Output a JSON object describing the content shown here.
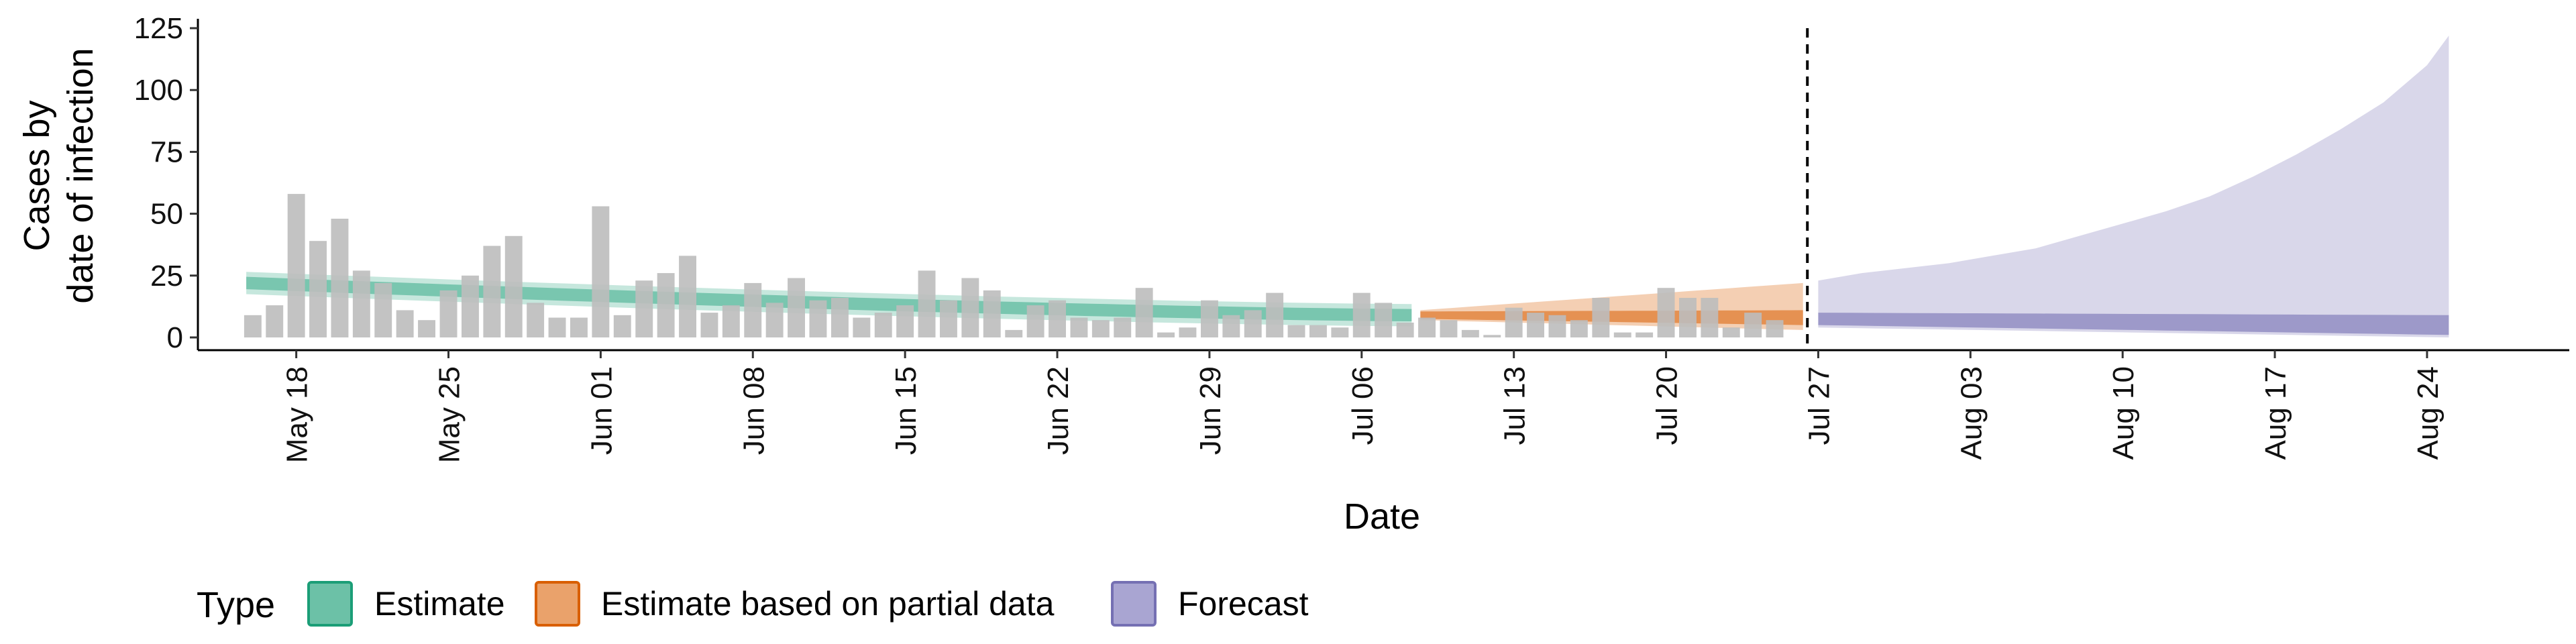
{
  "chart_data": {
    "type": "bar",
    "title": "",
    "xlabel": "Date",
    "ylabel_lines": [
      "Cases by",
      "date of infection"
    ],
    "ylim": [
      0,
      125
    ],
    "yticks": [
      0,
      25,
      50,
      75,
      100,
      125
    ],
    "x_start": "2020-05-14",
    "x_end": "2020-08-29",
    "x_ticks": [
      "2020-05-18",
      "2020-05-25",
      "2020-06-01",
      "2020-06-08",
      "2020-06-15",
      "2020-06-22",
      "2020-06-29",
      "2020-07-06",
      "2020-07-13",
      "2020-07-20",
      "2020-07-27",
      "2020-08-03",
      "2020-08-10",
      "2020-08-17",
      "2020-08-24"
    ],
    "x_tick_labels": [
      "May 18",
      "May 25",
      "Jun 01",
      "Jun 08",
      "Jun 15",
      "Jun 22",
      "Jun 29",
      "Jul 06",
      "Jul 13",
      "Jul 20",
      "Jul 27",
      "Aug 03",
      "Aug 10",
      "Aug 17",
      "Aug 24"
    ],
    "bars_start": "2020-05-16",
    "bars": [
      9,
      13,
      58,
      39,
      48,
      27,
      22,
      11,
      7,
      19,
      25,
      37,
      41,
      14,
      8,
      8,
      53,
      9,
      23,
      26,
      33,
      10,
      13,
      22,
      14,
      24,
      15,
      16,
      8,
      10,
      13,
      27,
      15,
      24,
      19,
      3,
      13,
      15,
      8,
      7,
      8,
      20,
      2,
      4,
      15,
      9,
      11,
      18,
      5,
      5,
      4,
      18,
      14,
      6,
      8,
      7,
      3,
      1,
      12,
      10,
      9,
      7,
      16,
      2,
      2,
      20,
      16,
      16,
      4,
      10,
      7
    ],
    "vline_date": "2020-07-26",
    "estimate": {
      "start": "2020-05-16",
      "end": "2020-07-08",
      "median_start": 22,
      "median_end": 9,
      "inner_halfwidth": 2.5,
      "outer_halfwidth": 4.5
    },
    "partial": {
      "start": "2020-07-09",
      "end": "2020-07-26",
      "median_start": 9,
      "median_end": 7,
      "inner_upper": [
        10.5,
        11
      ],
      "inner_lower": [
        7.5,
        5
      ],
      "outer_upper": [
        11,
        22
      ],
      "outer_lower": [
        7,
        3
      ]
    },
    "forecast": {
      "start": "2020-07-27",
      "end": "2020-08-25",
      "inner_upper": [
        10,
        9
      ],
      "inner_lower": [
        5,
        1
      ],
      "outer_upper_points": [
        [
          0,
          23
        ],
        [
          2,
          26
        ],
        [
          4,
          28
        ],
        [
          6,
          30
        ],
        [
          8,
          33
        ],
        [
          10,
          36
        ],
        [
          12,
          41
        ],
        [
          14,
          46
        ],
        [
          16,
          51
        ],
        [
          18,
          57
        ],
        [
          20,
          65
        ],
        [
          22,
          74
        ],
        [
          24,
          84
        ],
        [
          26,
          95
        ],
        [
          28,
          110
        ],
        [
          29,
          122
        ]
      ],
      "outer_lower": [
        4,
        0
      ]
    },
    "legend": {
      "title": "Type",
      "items": [
        {
          "label": "Estimate",
          "fill": "#6cc1a7",
          "stroke": "#1b9e77"
        },
        {
          "label": "Estimate based on partial data",
          "fill": "#eaa26b",
          "stroke": "#d95f02"
        },
        {
          "label": "Forecast",
          "fill": "#a9a5d2",
          "stroke": "#7570b3"
        }
      ]
    },
    "colors": {
      "bar": "#bdbdbd",
      "estimate": "#1b9e77",
      "partial": "#d95f02",
      "forecast": "#7570b3",
      "vline": "#000000"
    }
  }
}
